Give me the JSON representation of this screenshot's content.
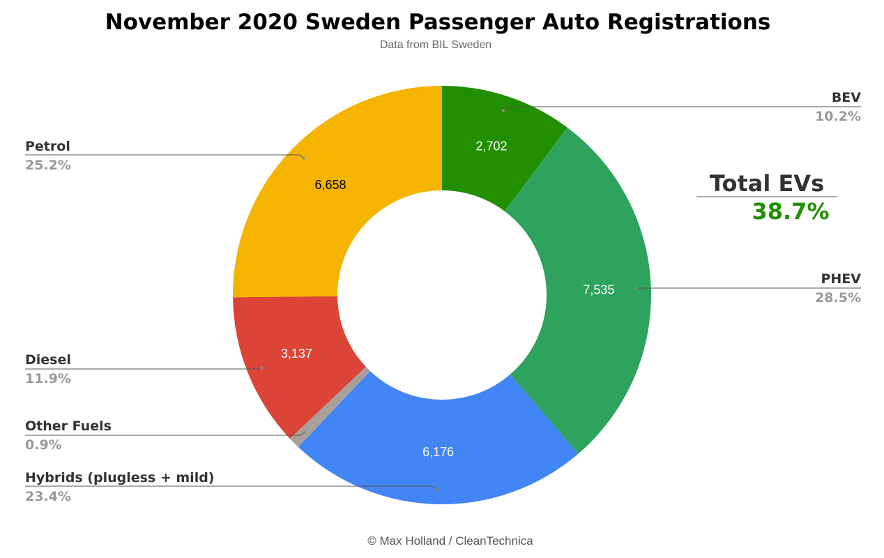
{
  "chart_data": {
    "type": "pie",
    "title": "November 2020 Sweden Passenger Auto Registrations",
    "subtitle": "Data from BIL Sweden",
    "footer": "© Max Holland / CleanTechnica",
    "donut": true,
    "slices": [
      {
        "label": "BEV",
        "value": 2702,
        "value_label": "2,702",
        "percent": "10.2%",
        "color": "#228f00",
        "value_color": "#ffffff"
      },
      {
        "label": "PHEV",
        "value": 7535,
        "value_label": "7,535",
        "percent": "28.5%",
        "color": "#2ea35e",
        "value_color": "#ffffff"
      },
      {
        "label": "Hybrids (plugless + mild)",
        "value": 6176,
        "value_label": "6,176",
        "percent": "23.4%",
        "color": "#4285f4",
        "value_color": "#ffffff"
      },
      {
        "label": "Other Fuels",
        "value": 240,
        "value_label": "",
        "percent": "0.9%",
        "color": "#a8a09b",
        "value_color": "#ffffff"
      },
      {
        "label": "Diesel",
        "value": 3137,
        "value_label": "3,137",
        "percent": "11.9%",
        "color": "#db4437",
        "value_color": "#ffffff"
      },
      {
        "label": "Petrol",
        "value": 6658,
        "value_label": "6,658",
        "percent": "25.2%",
        "color": "#f4b400",
        "value_color": "#000000"
      }
    ],
    "annotation": {
      "label": "Total EVs",
      "value": "38.7%",
      "value_color": "#228f00"
    }
  }
}
